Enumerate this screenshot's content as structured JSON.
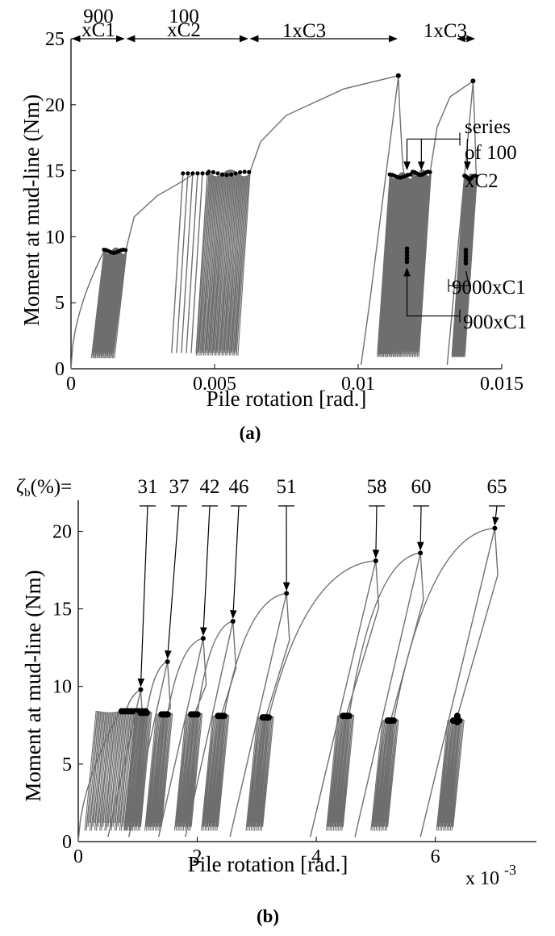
{
  "chart_data": [
    {
      "type": "line",
      "panel_label": "(a)",
      "xlabel": "Pile rotation [rad.]",
      "ylabel": "Moment at mud-line (Nm)",
      "xlim": [
        0,
        0.015
      ],
      "ylim": [
        0,
        25
      ],
      "xticks": [
        "0",
        "0.005",
        "0.01",
        "0.015"
      ],
      "yticks": [
        "0",
        "5",
        "10",
        "15",
        "20",
        "25"
      ],
      "grid": false,
      "phase_labels": [
        "900 xC1",
        "100 xC2",
        "1xC3",
        "1xC3"
      ],
      "phase_ranges": [
        [
          0,
          0.0019
        ],
        [
          0.0019,
          0.0062
        ],
        [
          0.0062,
          0.0114
        ],
        [
          0.0134,
          0.0141
        ]
      ],
      "annotations": [
        "series of 100 xC2",
        "9000xC1",
        "900xC1"
      ],
      "peak_points": [
        {
          "x": 0.0114,
          "y": 22.2
        },
        {
          "x": 0.014,
          "y": 21.8
        }
      ],
      "cyclic_clusters": [
        {
          "x_start": 0.00115,
          "x_end": 0.0019,
          "y_peak": 8.9,
          "y_min": 0.8
        },
        {
          "x_start": 0.0048,
          "x_end": 0.0062,
          "y_peak": 14.8,
          "y_min": 1.0
        },
        {
          "x_start": 0.0111,
          "x_end": 0.0119,
          "y_peak": 14.6,
          "y_min": 0.9
        },
        {
          "x_start": 0.0119,
          "x_end": 0.0125,
          "y_peak": 14.8,
          "y_min": 0.9
        },
        {
          "x_start": 0.0137,
          "x_end": 0.0141,
          "y_peak": 14.5,
          "y_min": 0.9
        }
      ]
    },
    {
      "type": "line",
      "panel_label": "(b)",
      "xlabel": "Pile rotation [rad.]",
      "ylabel": "Moment at mud-line (Nm)",
      "xlim": [
        0,
        7.7
      ],
      "ylim": [
        0,
        22
      ],
      "x_multiplier": "x 10",
      "x_multiplier_exp": "-3",
      "xticks": [
        "0",
        "2",
        "4",
        "6"
      ],
      "yticks": [
        "0",
        "5",
        "10",
        "15",
        "20"
      ],
      "grid": false,
      "zeta_label": "ζb(%)=",
      "zeta_values": [
        "31",
        "37",
        "42",
        "46",
        "51",
        "58",
        "60",
        "65"
      ],
      "peak_points": [
        {
          "x": 1.05,
          "y": 9.8
        },
        {
          "x": 1.5,
          "y": 11.6
        },
        {
          "x": 2.1,
          "y": 13.1
        },
        {
          "x": 2.6,
          "y": 14.2
        },
        {
          "x": 3.5,
          "y": 16.0
        },
        {
          "x": 5.0,
          "y": 18.1
        },
        {
          "x": 5.75,
          "y": 18.6
        },
        {
          "x": 7.0,
          "y": 20.2
        }
      ],
      "cyclic_clusters": [
        {
          "x": 0.75,
          "y_peak": 8.4
        },
        {
          "x": 1.1,
          "y_peak": 8.3
        },
        {
          "x": 1.45,
          "y_peak": 8.2
        },
        {
          "x": 1.95,
          "y_peak": 8.2
        },
        {
          "x": 2.4,
          "y_peak": 8.1
        },
        {
          "x": 3.15,
          "y_peak": 8.0
        },
        {
          "x": 4.5,
          "y_peak": 8.1
        },
        {
          "x": 5.25,
          "y_peak": 7.8
        },
        {
          "x": 6.35,
          "y_peak": 7.8
        }
      ]
    }
  ]
}
